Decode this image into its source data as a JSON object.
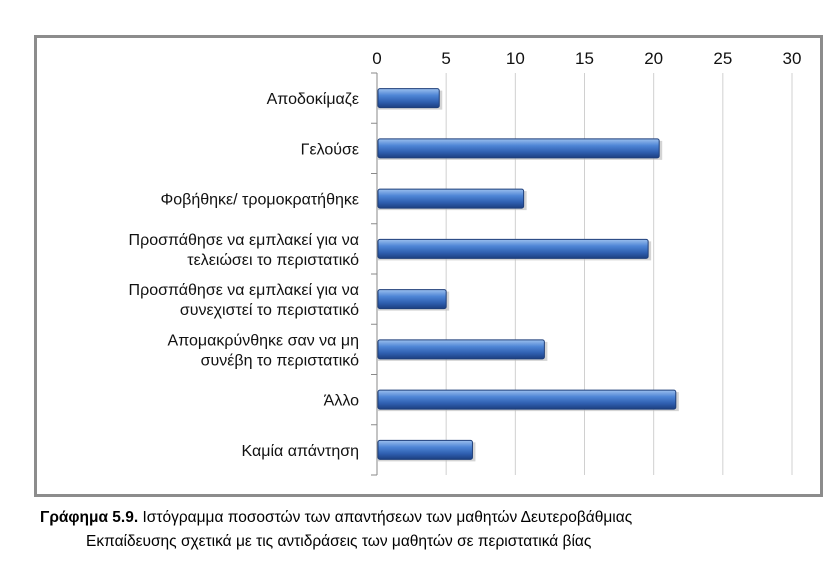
{
  "chart_data": {
    "type": "bar",
    "orientation": "horizontal",
    "categories": [
      [
        "Αποδοκίμαζε"
      ],
      [
        "Γελούσε"
      ],
      [
        "Φοβήθηκε/ τρομοκρατήθηκε"
      ],
      [
        "Προσπάθησε να εμπλακεί για να",
        "τελειώσει το περιστατικό"
      ],
      [
        "Προσπάθησε να εμπλακεί για να",
        "συνεχιστεί το περιστατικό"
      ],
      [
        "Απομακρύνθηκε σαν να μη",
        "συνέβη το περιστατικό"
      ],
      [
        "Άλλο"
      ],
      [
        "Καμία απάντηση"
      ]
    ],
    "values": [
      4.5,
      20.4,
      10.6,
      19.6,
      5.0,
      12.1,
      21.6,
      6.9
    ],
    "xlim": [
      0,
      30
    ],
    "xticks": [
      "0",
      "5",
      "10",
      "15",
      "20",
      "25",
      "30"
    ],
    "axis_position": "top",
    "grid": "vertical",
    "bar_color": "#3a6fc4",
    "bar_edge_color": "#1f3f7a"
  },
  "caption": {
    "label": "Γράφημα 5.9.",
    "line1": "Ιστόγραμμα ποσοστών των απαντήσεων των μαθητών Δευτεροβάθμιας",
    "line2": "Εκπαίδευσης σχετικά με τις αντιδράσεις των μαθητών σε περιστατικά βίας"
  }
}
